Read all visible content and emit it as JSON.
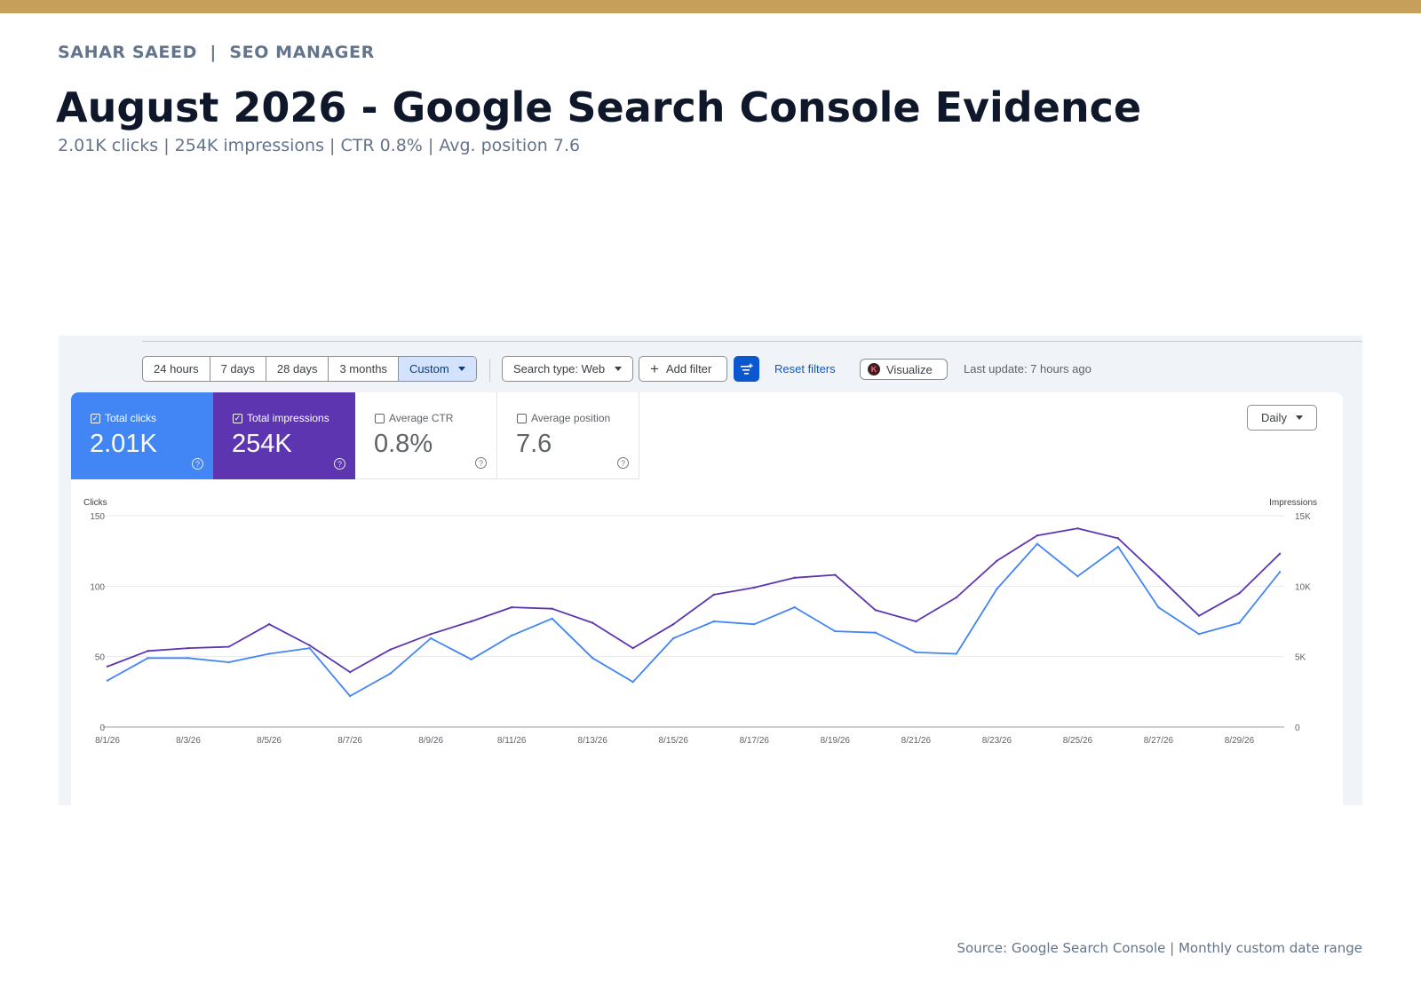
{
  "header": {
    "author": "SAHAR SAEED  |  SEO MANAGER",
    "title": "August 2026 - Google Search Console Evidence",
    "subtitle": "2.01K clicks | 254K impressions | CTR 0.8% | Avg. position 7.6"
  },
  "toolbar": {
    "date_ranges": [
      "24 hours",
      "7 days",
      "28 days",
      "3 months",
      "Custom"
    ],
    "active_range": "Custom",
    "search_type": "Search type: Web",
    "add_filter": "Add filter",
    "reset_filters": "Reset filters",
    "visualize": "Visualize",
    "last_update": "Last update: 7 hours ago"
  },
  "metrics": {
    "clicks": {
      "label": "Total clicks",
      "value": "2.01K",
      "checked": true,
      "color": "#4285f4"
    },
    "impressions": {
      "label": "Total impressions",
      "value": "254K",
      "checked": true,
      "color": "#5e35b1"
    },
    "ctr": {
      "label": "Average CTR",
      "value": "0.8%",
      "checked": false
    },
    "position": {
      "label": "Average position",
      "value": "7.6",
      "checked": false
    }
  },
  "granularity": "Daily",
  "chart_data": {
    "type": "line",
    "left_axis_label": "Clicks",
    "right_axis_label": "Impressions",
    "ylim_left": [
      0,
      150
    ],
    "ylim_right": [
      0,
      15000
    ],
    "left_ticks": [
      "0",
      "50",
      "100",
      "150"
    ],
    "right_ticks": [
      "0",
      "5K",
      "10K",
      "15K"
    ],
    "x_tick_labels": [
      "8/1/26",
      "8/3/26",
      "8/5/26",
      "8/7/26",
      "8/9/26",
      "8/11/26",
      "8/13/26",
      "8/15/26",
      "8/17/26",
      "8/19/26",
      "8/21/26",
      "8/23/26",
      "8/25/26",
      "8/27/26",
      "8/29/26"
    ],
    "x": [
      "8/1/26",
      "8/2/26",
      "8/3/26",
      "8/4/26",
      "8/5/26",
      "8/6/26",
      "8/7/26",
      "8/8/26",
      "8/9/26",
      "8/10/26",
      "8/11/26",
      "8/12/26",
      "8/13/26",
      "8/14/26",
      "8/15/26",
      "8/16/26",
      "8/17/26",
      "8/18/26",
      "8/19/26",
      "8/20/26",
      "8/21/26",
      "8/22/26",
      "8/23/26",
      "8/24/26",
      "8/25/26",
      "8/26/26",
      "8/27/26",
      "8/28/26",
      "8/29/26",
      "8/30/26"
    ],
    "grid": true,
    "series": [
      {
        "name": "Total clicks",
        "axis": "left",
        "color": "#4285f4",
        "values": [
          33,
          49,
          49,
          46,
          52,
          56,
          22,
          38,
          63,
          48,
          65,
          77,
          49,
          32,
          63,
          75,
          73,
          85,
          68,
          67,
          53,
          52,
          98,
          130,
          107,
          128,
          85,
          66,
          74,
          110
        ]
      },
      {
        "name": "Total impressions",
        "axis": "right",
        "color": "#5e35b1",
        "values": [
          4300,
          5400,
          5600,
          5700,
          7300,
          5800,
          3900,
          5500,
          6600,
          7500,
          8500,
          8400,
          7400,
          5600,
          7300,
          9400,
          9900,
          10600,
          10800,
          8300,
          7500,
          9200,
          11800,
          13600,
          14100,
          13400,
          10700,
          7900,
          9500,
          12300
        ]
      }
    ]
  },
  "footer": {
    "source": "Source: Google Search Console | Monthly custom date range"
  }
}
